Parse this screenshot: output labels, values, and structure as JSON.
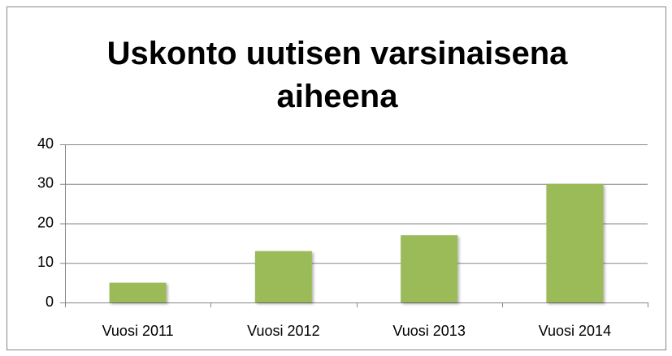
{
  "chart_data": {
    "type": "bar",
    "title": "Uskonto uutisen varsinaisena aiheena",
    "categories": [
      "Vuosi 2011",
      "Vuosi 2012",
      "Vuosi 2013",
      "Vuosi 2014"
    ],
    "values": [
      5,
      13,
      17,
      30
    ],
    "color": "#9bbb59",
    "ylim": [
      0,
      40
    ],
    "yticks": [
      0,
      10,
      20,
      30,
      40
    ],
    "grid": true
  }
}
